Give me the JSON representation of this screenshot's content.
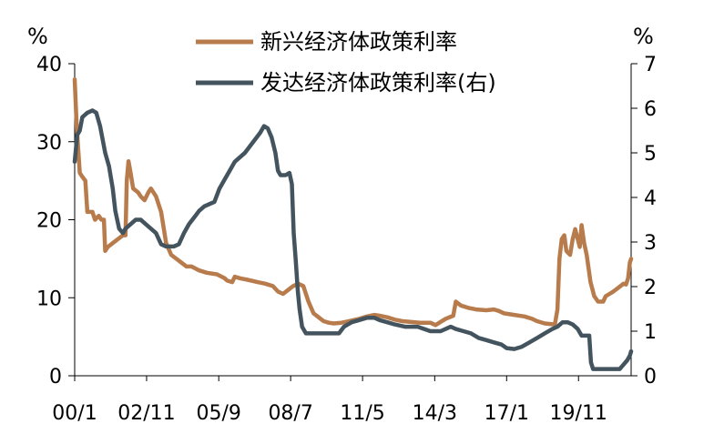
{
  "chart_data": {
    "type": "line",
    "title": "",
    "xlabel": "",
    "left_axis": {
      "unit": "%",
      "ylim": [
        0,
        40
      ],
      "ticks": [
        0,
        10,
        20,
        30,
        40
      ]
    },
    "right_axis": {
      "unit": "%",
      "ylim": [
        0,
        7
      ],
      "ticks": [
        0,
        1,
        2,
        3,
        4,
        5,
        6,
        7
      ]
    },
    "x_ticks": [
      {
        "label": "00/1",
        "x": 2000.0
      },
      {
        "label": "02/11",
        "x": 2002.83
      },
      {
        "label": "05/9",
        "x": 2005.67
      },
      {
        "label": "08/7",
        "x": 2008.5
      },
      {
        "label": "11/5",
        "x": 2011.33
      },
      {
        "label": "14/3",
        "x": 2014.17
      },
      {
        "label": "17/1",
        "x": 2017.0
      },
      {
        "label": "19/11",
        "x": 2019.83
      }
    ],
    "xlim": [
      2000.0,
      2021.9
    ],
    "legend_position": "top",
    "series": [
      {
        "name": "新兴经济体政策利率",
        "axis": "left",
        "color": "#B87B4C",
        "points": [
          [
            2000.0,
            38
          ],
          [
            2000.08,
            32
          ],
          [
            2000.2,
            26
          ],
          [
            2000.3,
            25.5
          ],
          [
            2000.42,
            25
          ],
          [
            2000.5,
            21
          ],
          [
            2000.7,
            21
          ],
          [
            2000.8,
            20
          ],
          [
            2000.95,
            20.5
          ],
          [
            2001.05,
            20
          ],
          [
            2001.15,
            20
          ],
          [
            2001.2,
            16
          ],
          [
            2001.3,
            16.5
          ],
          [
            2001.5,
            17
          ],
          [
            2001.7,
            17.5
          ],
          [
            2001.9,
            18
          ],
          [
            2002.0,
            18
          ],
          [
            2002.05,
            25
          ],
          [
            2002.12,
            27.5
          ],
          [
            2002.2,
            26
          ],
          [
            2002.3,
            24
          ],
          [
            2002.5,
            23.5
          ],
          [
            2002.6,
            23
          ],
          [
            2002.75,
            22.5
          ],
          [
            2002.9,
            23.5
          ],
          [
            2003.0,
            24
          ],
          [
            2003.2,
            23
          ],
          [
            2003.4,
            21
          ],
          [
            2003.6,
            17
          ],
          [
            2003.8,
            15.5
          ],
          [
            2004.0,
            15
          ],
          [
            2004.2,
            14.5
          ],
          [
            2004.4,
            14
          ],
          [
            2004.6,
            14
          ],
          [
            2004.9,
            13.5
          ],
          [
            2005.2,
            13.2
          ],
          [
            2005.6,
            13
          ],
          [
            2005.9,
            12.5
          ],
          [
            2006.0,
            12.2
          ],
          [
            2006.2,
            12
          ],
          [
            2006.3,
            12.7
          ],
          [
            2006.5,
            12.5
          ],
          [
            2006.8,
            12.3
          ],
          [
            2007.2,
            12
          ],
          [
            2007.5,
            11.8
          ],
          [
            2007.8,
            11.5
          ],
          [
            2008.0,
            10.8
          ],
          [
            2008.2,
            10.5
          ],
          [
            2008.4,
            11
          ],
          [
            2008.6,
            11.5
          ],
          [
            2008.8,
            11.8
          ],
          [
            2009.0,
            11.5
          ],
          [
            2009.1,
            10.5
          ],
          [
            2009.2,
            9.5
          ],
          [
            2009.4,
            8
          ],
          [
            2009.6,
            7.5
          ],
          [
            2009.8,
            7
          ],
          [
            2010.0,
            6.8
          ],
          [
            2010.2,
            6.7
          ],
          [
            2010.5,
            6.8
          ],
          [
            2010.8,
            7
          ],
          [
            2011.2,
            7.3
          ],
          [
            2011.5,
            7.6
          ],
          [
            2011.8,
            7.8
          ],
          [
            2012.0,
            7.7
          ],
          [
            2012.3,
            7.5
          ],
          [
            2012.6,
            7.2
          ],
          [
            2012.9,
            7
          ],
          [
            2013.2,
            6.9
          ],
          [
            2013.6,
            6.8
          ],
          [
            2014.0,
            6.8
          ],
          [
            2014.2,
            6.5
          ],
          [
            2014.4,
            6.9
          ],
          [
            2014.6,
            7.3
          ],
          [
            2014.9,
            7.7
          ],
          [
            2015.0,
            9.5
          ],
          [
            2015.2,
            9
          ],
          [
            2015.5,
            8.7
          ],
          [
            2015.8,
            8.5
          ],
          [
            2016.2,
            8.4
          ],
          [
            2016.5,
            8.5
          ],
          [
            2016.7,
            8.3
          ],
          [
            2016.9,
            8.0
          ],
          [
            2017.3,
            7.8
          ],
          [
            2017.7,
            7.6
          ],
          [
            2018.0,
            7.3
          ],
          [
            2018.2,
            7
          ],
          [
            2018.5,
            6.7
          ],
          [
            2018.8,
            6.6
          ],
          [
            2018.9,
            6.6
          ],
          [
            2019.0,
            8.5
          ],
          [
            2019.08,
            15
          ],
          [
            2019.17,
            17.5
          ],
          [
            2019.27,
            18
          ],
          [
            2019.35,
            16
          ],
          [
            2019.5,
            15.5
          ],
          [
            2019.6,
            17.5
          ],
          [
            2019.7,
            18.8
          ],
          [
            2019.8,
            17.5
          ],
          [
            2019.88,
            16.5
          ],
          [
            2019.95,
            19.3
          ],
          [
            2020.05,
            17
          ],
          [
            2020.15,
            15.5
          ],
          [
            2020.3,
            12
          ],
          [
            2020.45,
            10.2
          ],
          [
            2020.6,
            9.5
          ],
          [
            2020.8,
            9.5
          ],
          [
            2020.9,
            10.2
          ],
          [
            2021.05,
            10.5
          ],
          [
            2021.2,
            10.8
          ],
          [
            2021.4,
            11.3
          ],
          [
            2021.6,
            11.8
          ],
          [
            2021.7,
            11.7
          ],
          [
            2021.78,
            12.5
          ],
          [
            2021.85,
            14.5
          ],
          [
            2021.9,
            15
          ]
        ]
      },
      {
        "name": "发达经济体政策利率(右)",
        "axis": "right",
        "color": "#44545E",
        "points": [
          [
            2000.0,
            4.8
          ],
          [
            2000.1,
            5.4
          ],
          [
            2000.2,
            5.5
          ],
          [
            2000.3,
            5.8
          ],
          [
            2000.5,
            5.9
          ],
          [
            2000.7,
            5.95
          ],
          [
            2000.85,
            5.9
          ],
          [
            2001.0,
            5.6
          ],
          [
            2001.2,
            5.0
          ],
          [
            2001.35,
            4.7
          ],
          [
            2001.5,
            4.2
          ],
          [
            2001.6,
            3.7
          ],
          [
            2001.75,
            3.3
          ],
          [
            2001.9,
            3.2
          ],
          [
            2002.0,
            3.3
          ],
          [
            2002.2,
            3.4
          ],
          [
            2002.4,
            3.5
          ],
          [
            2002.6,
            3.5
          ],
          [
            2002.8,
            3.4
          ],
          [
            2003.0,
            3.3
          ],
          [
            2003.2,
            3.2
          ],
          [
            2003.4,
            2.95
          ],
          [
            2003.6,
            2.9
          ],
          [
            2003.9,
            2.9
          ],
          [
            2004.1,
            2.95
          ],
          [
            2004.3,
            3.2
          ],
          [
            2004.5,
            3.4
          ],
          [
            2004.7,
            3.55
          ],
          [
            2004.9,
            3.7
          ],
          [
            2005.1,
            3.8
          ],
          [
            2005.3,
            3.85
          ],
          [
            2005.5,
            3.9
          ],
          [
            2005.7,
            4.2
          ],
          [
            2005.9,
            4.4
          ],
          [
            2006.1,
            4.6
          ],
          [
            2006.3,
            4.8
          ],
          [
            2006.5,
            4.9
          ],
          [
            2006.7,
            5.0
          ],
          [
            2006.9,
            5.15
          ],
          [
            2007.1,
            5.3
          ],
          [
            2007.3,
            5.45
          ],
          [
            2007.45,
            5.6
          ],
          [
            2007.6,
            5.55
          ],
          [
            2007.75,
            5.35
          ],
          [
            2007.9,
            5.0
          ],
          [
            2008.0,
            4.6
          ],
          [
            2008.1,
            4.5
          ],
          [
            2008.3,
            4.5
          ],
          [
            2008.45,
            4.55
          ],
          [
            2008.55,
            4.3
          ],
          [
            2008.62,
            3.2
          ],
          [
            2008.7,
            2.6
          ],
          [
            2008.78,
            1.9
          ],
          [
            2008.85,
            1.5
          ],
          [
            2008.95,
            1.1
          ],
          [
            2009.1,
            0.95
          ],
          [
            2009.5,
            0.95
          ],
          [
            2010.0,
            0.95
          ],
          [
            2010.4,
            0.95
          ],
          [
            2010.6,
            1.1
          ],
          [
            2010.9,
            1.2
          ],
          [
            2011.2,
            1.25
          ],
          [
            2011.5,
            1.3
          ],
          [
            2011.8,
            1.3
          ],
          [
            2012.0,
            1.25
          ],
          [
            2012.3,
            1.2
          ],
          [
            2012.6,
            1.15
          ],
          [
            2013.0,
            1.1
          ],
          [
            2013.5,
            1.1
          ],
          [
            2014.0,
            1.0
          ],
          [
            2014.4,
            1.0
          ],
          [
            2014.6,
            1.05
          ],
          [
            2014.8,
            1.1
          ],
          [
            2015.0,
            1.05
          ],
          [
            2015.3,
            1.0
          ],
          [
            2015.6,
            0.95
          ],
          [
            2015.9,
            0.85
          ],
          [
            2016.2,
            0.8
          ],
          [
            2016.5,
            0.75
          ],
          [
            2016.8,
            0.7
          ],
          [
            2017.0,
            0.62
          ],
          [
            2017.3,
            0.6
          ],
          [
            2017.6,
            0.65
          ],
          [
            2017.9,
            0.75
          ],
          [
            2018.2,
            0.85
          ],
          [
            2018.5,
            0.95
          ],
          [
            2018.8,
            1.05
          ],
          [
            2019.0,
            1.1
          ],
          [
            2019.2,
            1.2
          ],
          [
            2019.4,
            1.2
          ],
          [
            2019.6,
            1.15
          ],
          [
            2019.8,
            1.05
          ],
          [
            2019.95,
            0.9
          ],
          [
            2020.15,
            0.9
          ],
          [
            2020.25,
            0.9
          ],
          [
            2020.32,
            0.3
          ],
          [
            2020.4,
            0.15
          ],
          [
            2020.6,
            0.15
          ],
          [
            2020.9,
            0.15
          ],
          [
            2021.2,
            0.15
          ],
          [
            2021.45,
            0.15
          ],
          [
            2021.6,
            0.25
          ],
          [
            2021.75,
            0.35
          ],
          [
            2021.85,
            0.45
          ],
          [
            2021.9,
            0.55
          ]
        ]
      }
    ]
  }
}
